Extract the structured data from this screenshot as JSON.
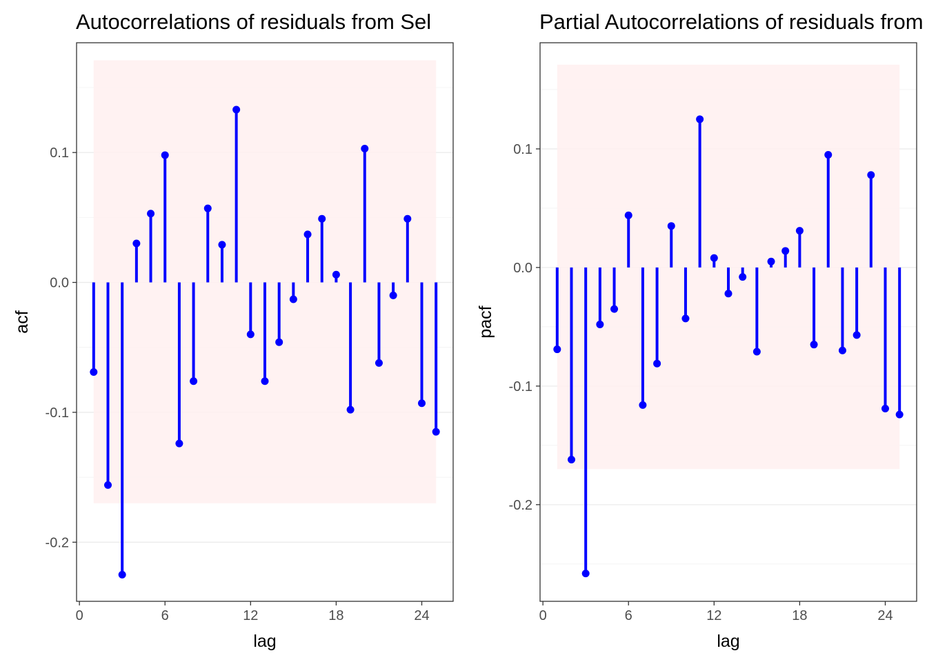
{
  "colors": {
    "stem": "#0000ff",
    "band": "#fff0f0",
    "grid_major": "#ebebeb",
    "grid_minor": "#f4f4f4",
    "panel_border": "#333333",
    "tick_text": "#4d4d4d"
  },
  "chart_data": [
    {
      "type": "lollipop",
      "title": "Autocorrelations of residuals from Sel",
      "xlabel": "lag",
      "ylabel": "acf",
      "xlim": [
        -0.2,
        26.2
      ],
      "ylim": [
        -0.2455,
        0.1845
      ],
      "xticks": [
        0,
        6,
        12,
        18,
        24
      ],
      "xtick_labels": [
        "0",
        "6",
        "12",
        "18",
        "24"
      ],
      "yticks": [
        -0.2,
        -0.1,
        0.0,
        0.1
      ],
      "ytick_labels": [
        "-0.2",
        "-0.1",
        "0.0",
        "0.1"
      ],
      "yminor": [
        -0.15,
        -0.05,
        0.05,
        0.15
      ],
      "band": {
        "xmin": 1,
        "xmax": 25,
        "ymin": -0.17,
        "ymax": 0.171
      },
      "lags": [
        1,
        2,
        3,
        4,
        5,
        6,
        7,
        8,
        9,
        10,
        11,
        12,
        13,
        14,
        15,
        16,
        17,
        18,
        19,
        20,
        21,
        22,
        23,
        24,
        25
      ],
      "values": [
        -0.069,
        -0.156,
        -0.225,
        0.03,
        0.053,
        0.098,
        -0.124,
        -0.076,
        0.057,
        0.029,
        0.133,
        -0.04,
        -0.076,
        -0.046,
        -0.013,
        0.037,
        0.049,
        0.006,
        -0.098,
        0.103,
        -0.062,
        -0.01,
        0.049,
        -0.093,
        -0.115
      ]
    },
    {
      "type": "lollipop",
      "title": "Partial Autocorrelations of residuals from Sel",
      "xlabel": "lag",
      "ylabel": "pacf",
      "xlim": [
        -0.2,
        26.2
      ],
      "ylim": [
        -0.2815,
        0.1895
      ],
      "xticks": [
        0,
        6,
        12,
        18,
        24
      ],
      "xtick_labels": [
        "0",
        "6",
        "12",
        "18",
        "24"
      ],
      "yticks": [
        -0.2,
        -0.1,
        0.0,
        0.1
      ],
      "ytick_labels": [
        "-0.2",
        "-0.1",
        "0.0",
        "0.1"
      ],
      "yminor": [
        -0.25,
        -0.15,
        -0.05,
        0.05,
        0.15
      ],
      "band": {
        "xmin": 1,
        "xmax": 25,
        "ymin": -0.17,
        "ymax": 0.171
      },
      "lags": [
        1,
        2,
        3,
        4,
        5,
        6,
        7,
        8,
        9,
        10,
        11,
        12,
        13,
        14,
        15,
        16,
        17,
        18,
        19,
        20,
        21,
        22,
        23,
        24,
        25
      ],
      "values": [
        -0.069,
        -0.162,
        -0.258,
        -0.048,
        -0.035,
        0.044,
        -0.116,
        -0.081,
        0.035,
        -0.043,
        0.125,
        0.008,
        -0.022,
        -0.008,
        -0.071,
        0.005,
        0.014,
        0.031,
        -0.065,
        0.095,
        -0.07,
        -0.057,
        0.078,
        -0.119,
        -0.124
      ]
    }
  ]
}
